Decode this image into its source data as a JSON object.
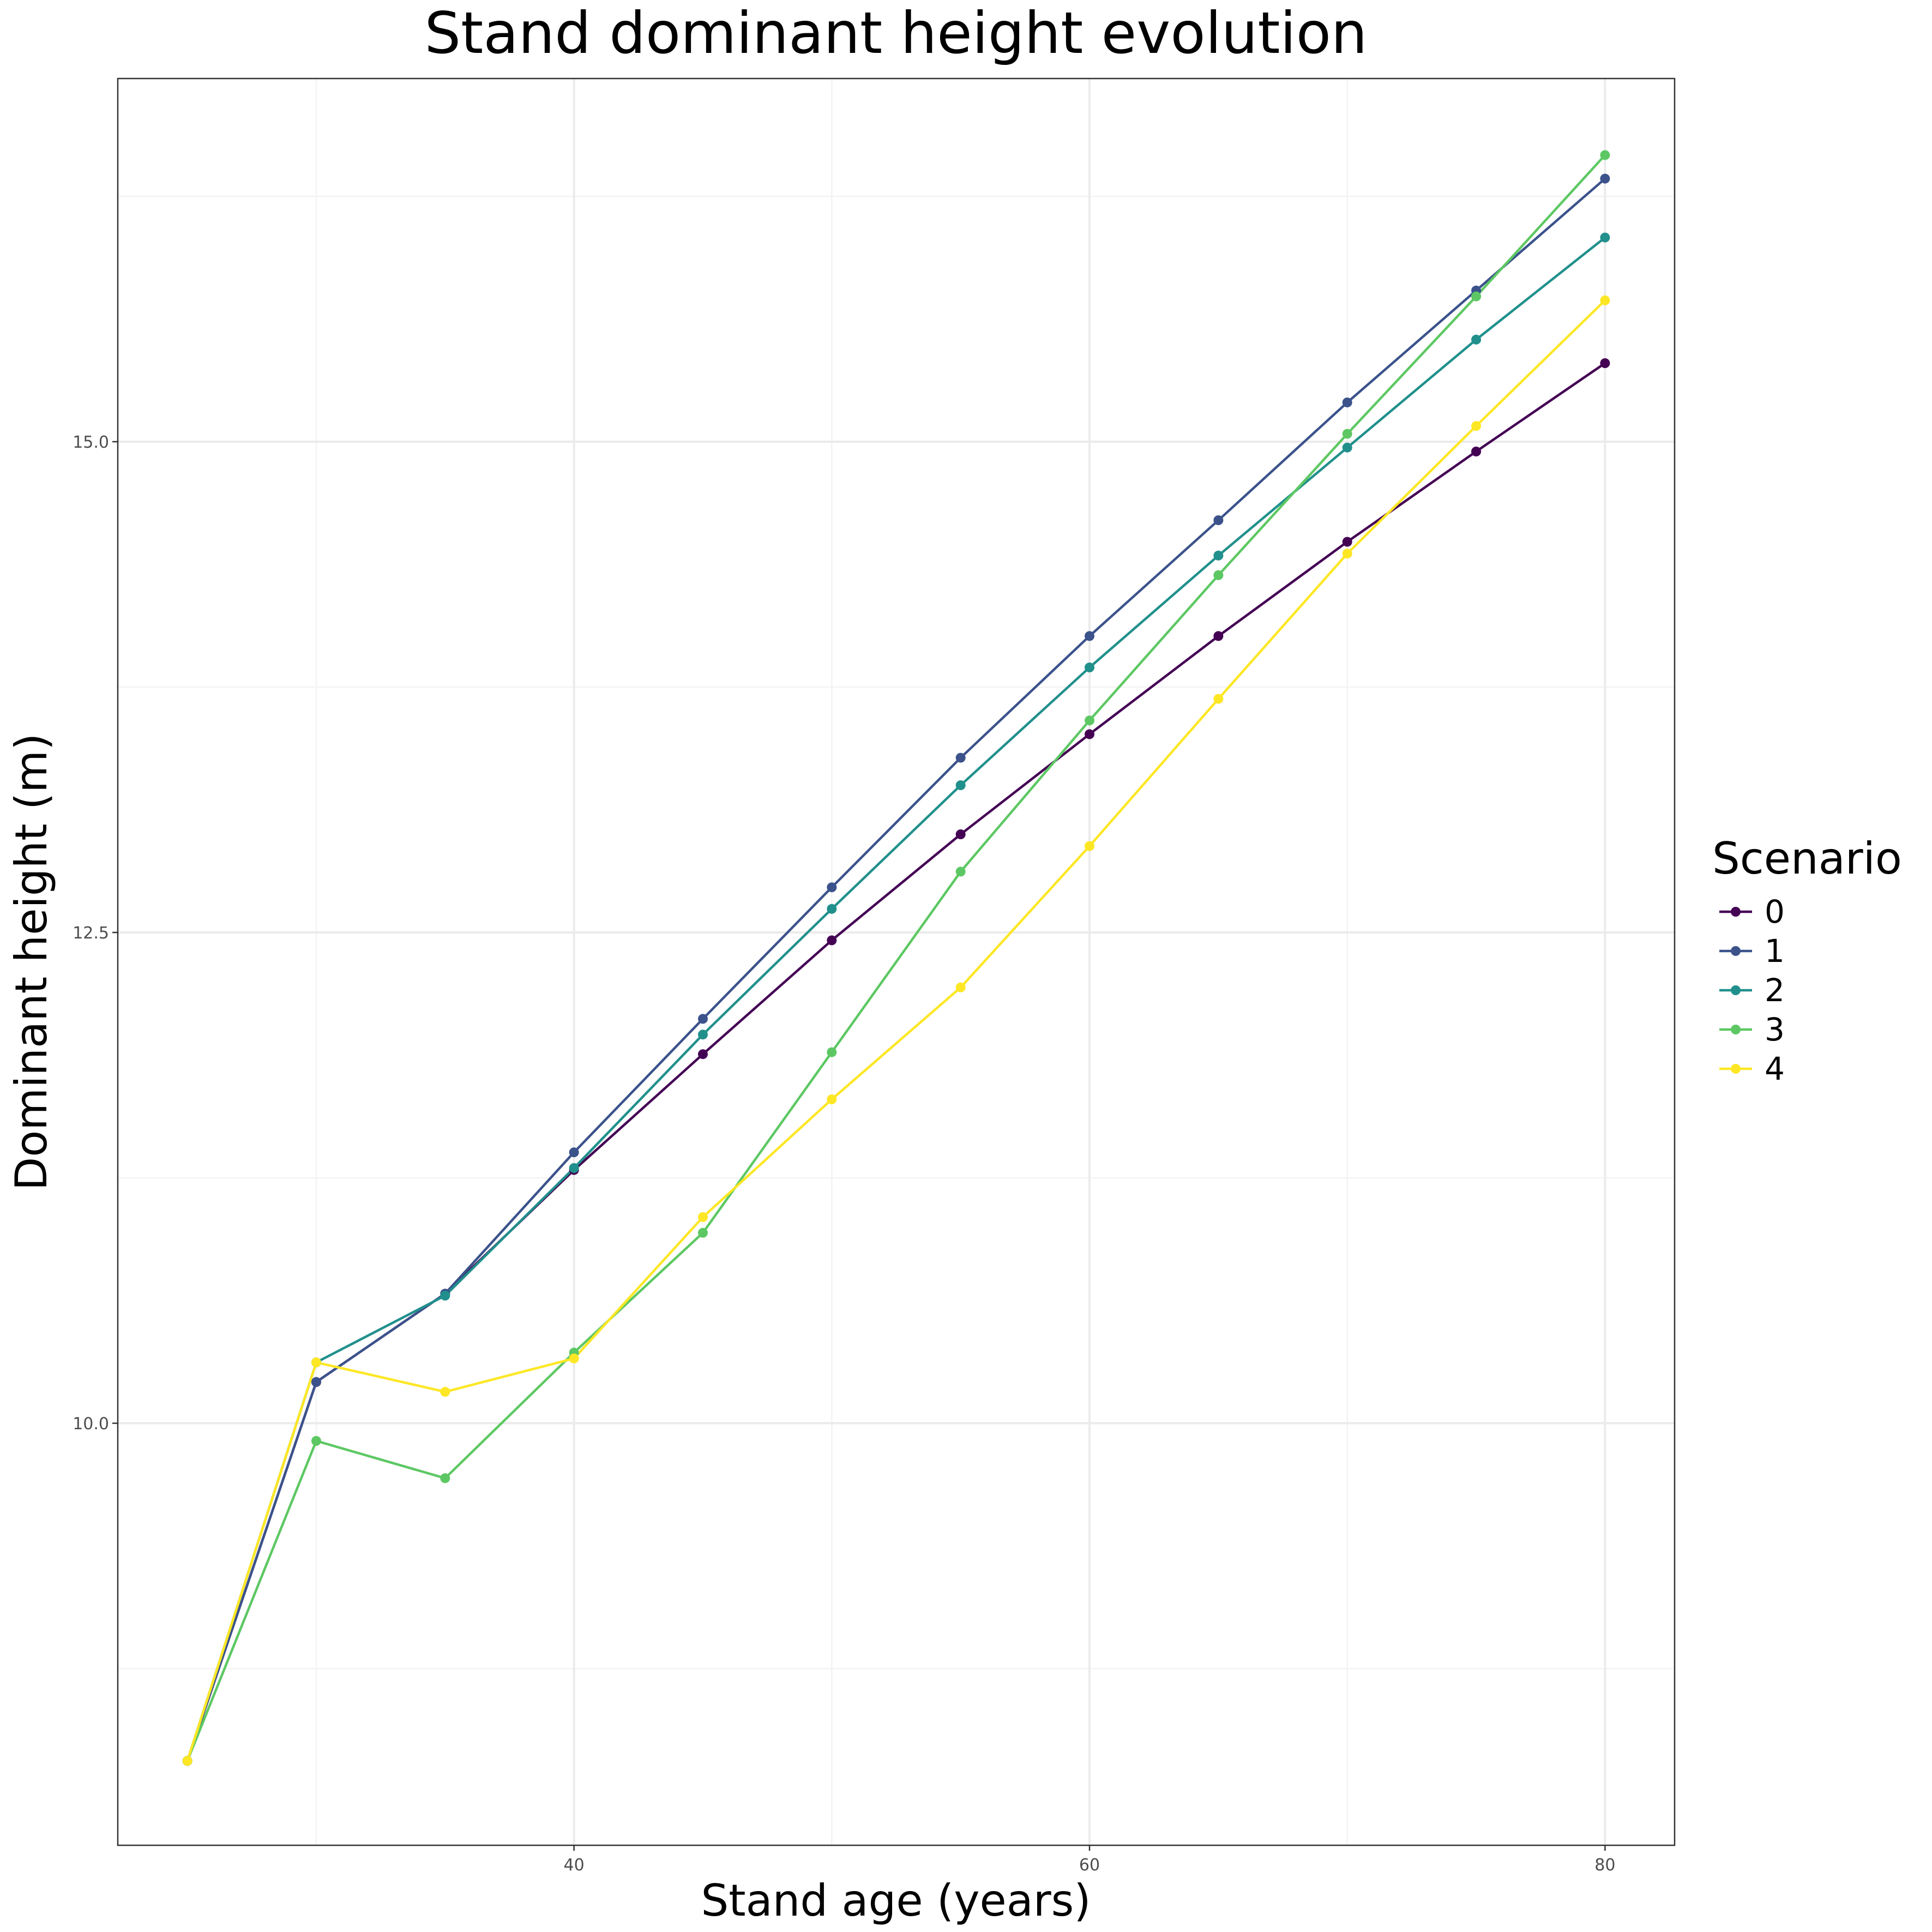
{
  "chart_data": {
    "type": "line",
    "title": "Stand dominant height evolution",
    "xlabel": "Stand age (years)",
    "ylabel": "Dominant height (m)",
    "xlim": [
      22.3,
      82.7
    ],
    "ylim": [
      7.85,
      16.85
    ],
    "x_ticks": [
      40,
      60,
      80
    ],
    "x_tick_labels": [
      "40",
      "60",
      "80"
    ],
    "x_minor_ticks": [
      30,
      50,
      70
    ],
    "y_ticks": [
      10.0,
      12.5,
      15.0
    ],
    "y_tick_labels": [
      "10.0",
      "12.5",
      "15.0"
    ],
    "y_minor_ticks": [
      8.75,
      11.25,
      13.75,
      16.25
    ],
    "grid": true,
    "legend": {
      "title": "Scenario",
      "position": "right"
    },
    "x": [
      25,
      30,
      35,
      40,
      45,
      50,
      55,
      60,
      65,
      70,
      75,
      80
    ],
    "series": [
      {
        "name": "0",
        "color": "#440154",
        "values": [
          8.28,
          10.21,
          10.66,
          11.29,
          11.88,
          12.46,
          13.0,
          13.51,
          14.01,
          14.49,
          14.95,
          15.4
        ]
      },
      {
        "name": "1",
        "color": "#3B528B",
        "values": [
          8.28,
          10.21,
          10.66,
          11.38,
          12.06,
          12.73,
          13.39,
          14.01,
          14.6,
          15.2,
          15.77,
          16.34
        ]
      },
      {
        "name": "2",
        "color": "#21908C",
        "values": [
          8.28,
          10.31,
          10.65,
          11.3,
          11.98,
          12.62,
          13.25,
          13.85,
          14.42,
          14.97,
          15.52,
          16.04
        ]
      },
      {
        "name": "3",
        "color": "#5DC863",
        "values": [
          8.28,
          9.91,
          9.72,
          10.36,
          10.97,
          11.89,
          12.81,
          13.58,
          14.32,
          15.04,
          15.74,
          16.46
        ]
      },
      {
        "name": "4",
        "color": "#FDE725",
        "values": [
          8.28,
          10.31,
          10.16,
          10.33,
          11.05,
          11.65,
          12.22,
          12.94,
          13.69,
          14.43,
          15.08,
          15.72
        ]
      }
    ]
  }
}
